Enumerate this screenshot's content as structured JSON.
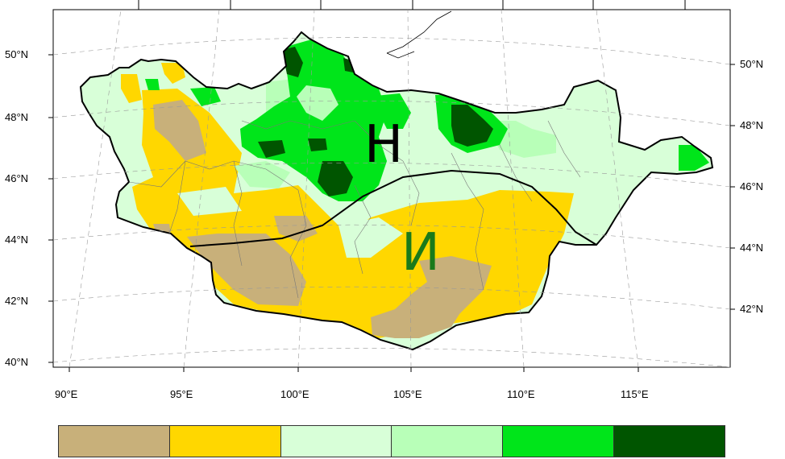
{
  "map": {
    "latitude_labels_left": [
      "50°N",
      "48°N",
      "46°N",
      "44°N",
      "42°N",
      "40°N"
    ],
    "latitude_labels_right": [
      "50°N",
      "48°N",
      "46°N",
      "44°N",
      "42°N"
    ],
    "longitude_labels": [
      "90°E",
      "95°E",
      "100°E",
      "105°E",
      "110°E",
      "115°E"
    ],
    "region_labels": [
      {
        "text": "H",
        "color": "#000000"
      },
      {
        "text": "И",
        "color": "#1a7a1a"
      }
    ],
    "legend_colors": [
      "#c8b07a",
      "#ffd700",
      "#d8ffd8",
      "#b8ffb8",
      "#00e51a",
      "#005500"
    ]
  }
}
